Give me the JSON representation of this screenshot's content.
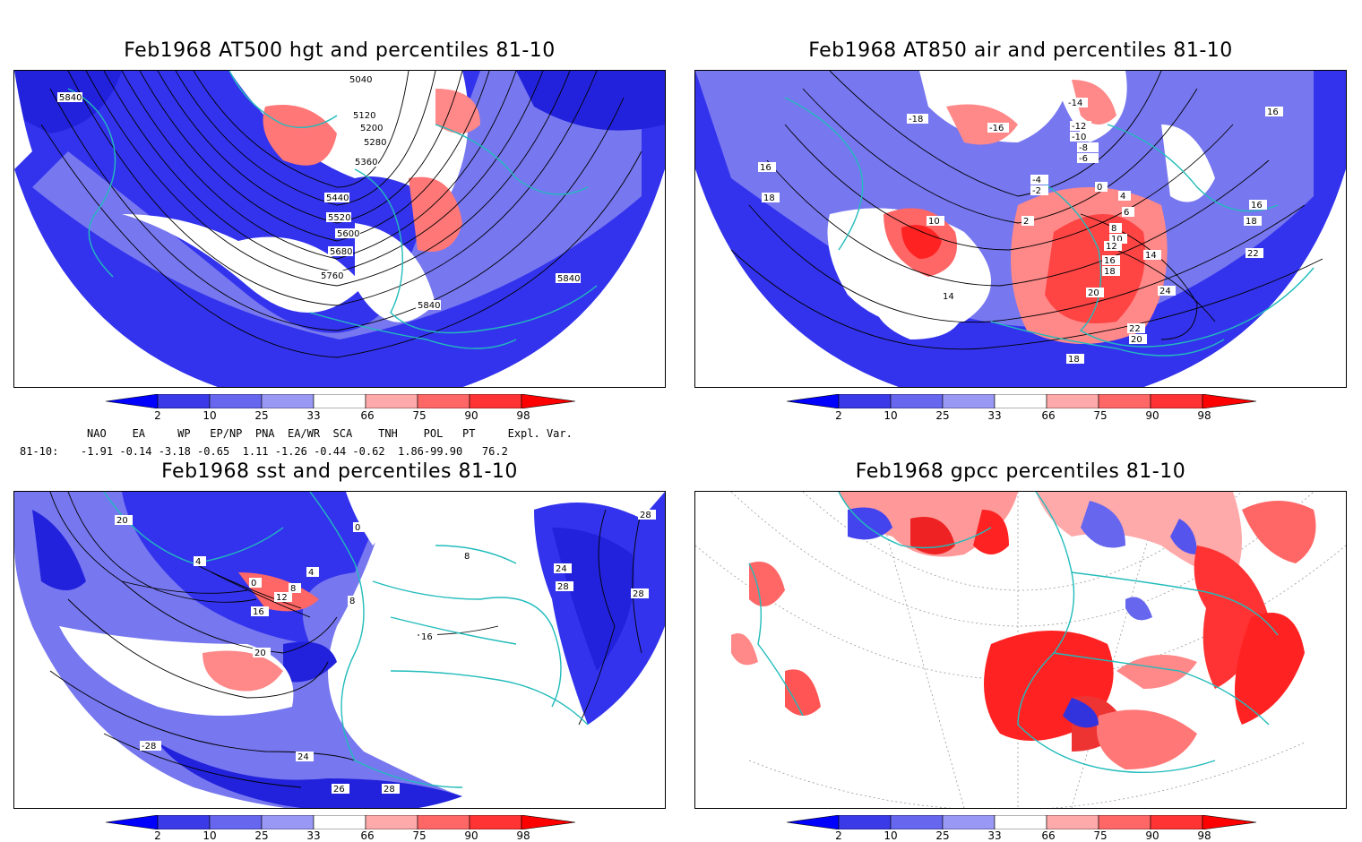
{
  "panels": [
    {
      "title": "Feb1968 AT500 hgt and percentiles 81-10",
      "contour_labels": [
        "5040",
        "5120",
        "5200",
        "5280",
        "5360",
        "5440",
        "5520",
        "5600",
        "5680",
        "5760",
        "5840",
        "5840",
        "5840"
      ]
    },
    {
      "title": "Feb1968 AT850 air and percentiles 81-10",
      "contour_labels": [
        "-14",
        "-12",
        "-10",
        "-8",
        "-6",
        "-4",
        "-2",
        "0",
        "2",
        "4",
        "6",
        "8",
        "10",
        "10",
        "12",
        "14",
        "14",
        "16",
        "16",
        "16",
        "16",
        "18",
        "18",
        "18",
        "18",
        "20",
        "20",
        "22",
        "22",
        "24",
        "-16",
        "-18"
      ]
    },
    {
      "title": "Feb1968 sst and percentiles 81-10",
      "contour_labels": [
        "0",
        "4",
        "8",
        "8",
        "12",
        "16",
        "16",
        "20",
        "20",
        "24",
        "24",
        "26",
        "28",
        "28",
        "28",
        "28",
        "-28",
        "0",
        "4",
        "8"
      ]
    },
    {
      "title": "Feb1968 gpcc percentiles 81-10",
      "contour_labels": []
    }
  ],
  "colorbar": {
    "labels": [
      "2",
      "10",
      "25",
      "33",
      "66",
      "75",
      "90",
      "98"
    ],
    "colors": [
      "#0000ff",
      "#3a3ae8",
      "#6666ee",
      "#9999f5",
      "#ffffff",
      "#ffaaaa",
      "#ff6666",
      "#ff3333",
      "#ff0000"
    ]
  },
  "teleconnections": {
    "header": "NAO    EA     WP   EP/NP  PNA  EA/WR  SCA    TNH    POL   PT     Expl. Var.",
    "row_label": "81-10:",
    "row_values": "-1.91 -0.14 -3.18 -0.65  1.11 -1.26 -0.44 -0.62  1.86-99.90   76.2"
  }
}
